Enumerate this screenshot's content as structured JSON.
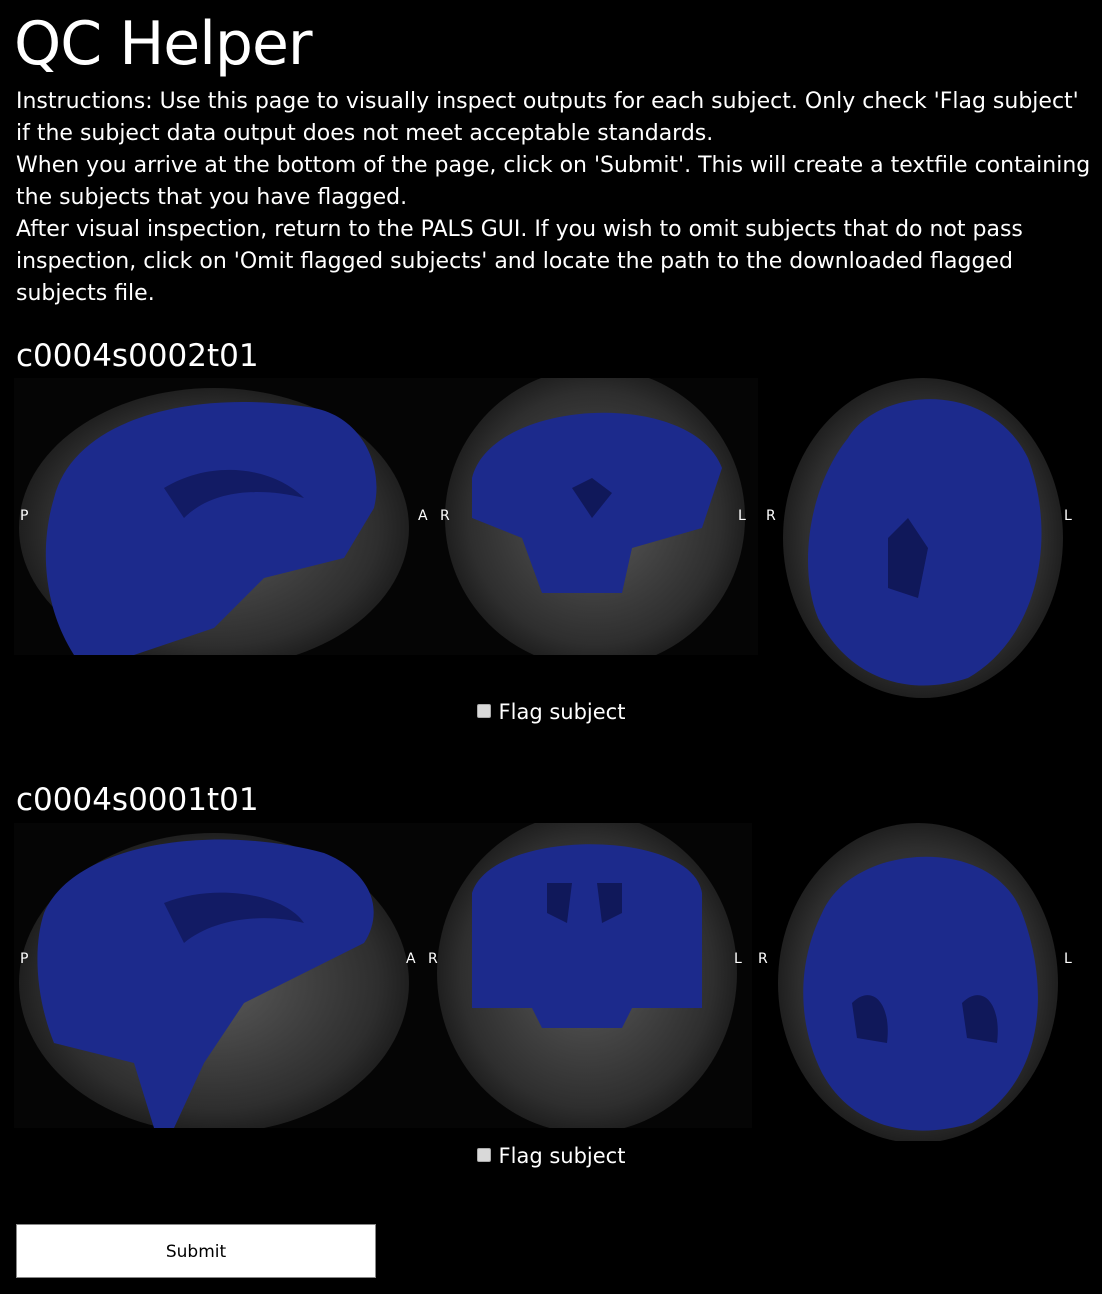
{
  "page": {
    "title": "QC Helper",
    "instructions": [
      "Instructions: Use this page to visually inspect outputs for each subject. Only check 'Flag subject' if the subject data output does not meet acceptable standards.",
      "When you arrive at the bottom of the page, click on 'Submit'. This will create a textfile containing the subjects that you have flagged.",
      "After visual inspection, return to the PALS GUI. If you wish to omit subjects that do not pass inspection, click on 'Omit flagged subjects' and locate the path to the downloaded flagged subjects file."
    ]
  },
  "subjects": [
    {
      "id": "c0004s0002t01",
      "flag_label": "Flag subject",
      "flag_checked": false,
      "views": {
        "sagittal": {
          "left": "P",
          "right": "A"
        },
        "coronal": {
          "left": "R",
          "right": "L"
        },
        "axial": {
          "left": "R",
          "right": "L"
        }
      }
    },
    {
      "id": "c0004s0001t01",
      "flag_label": "Flag subject",
      "flag_checked": false,
      "views": {
        "sagittal": {
          "left": "P",
          "right": "A"
        },
        "coronal": {
          "left": "R",
          "right": "L"
        },
        "axial": {
          "left": "R",
          "right": "L"
        }
      }
    }
  ],
  "submit_label": "Submit",
  "colors": {
    "background": "#000000",
    "mask_overlay": "#1c2a8c",
    "text": "#ffffff"
  }
}
